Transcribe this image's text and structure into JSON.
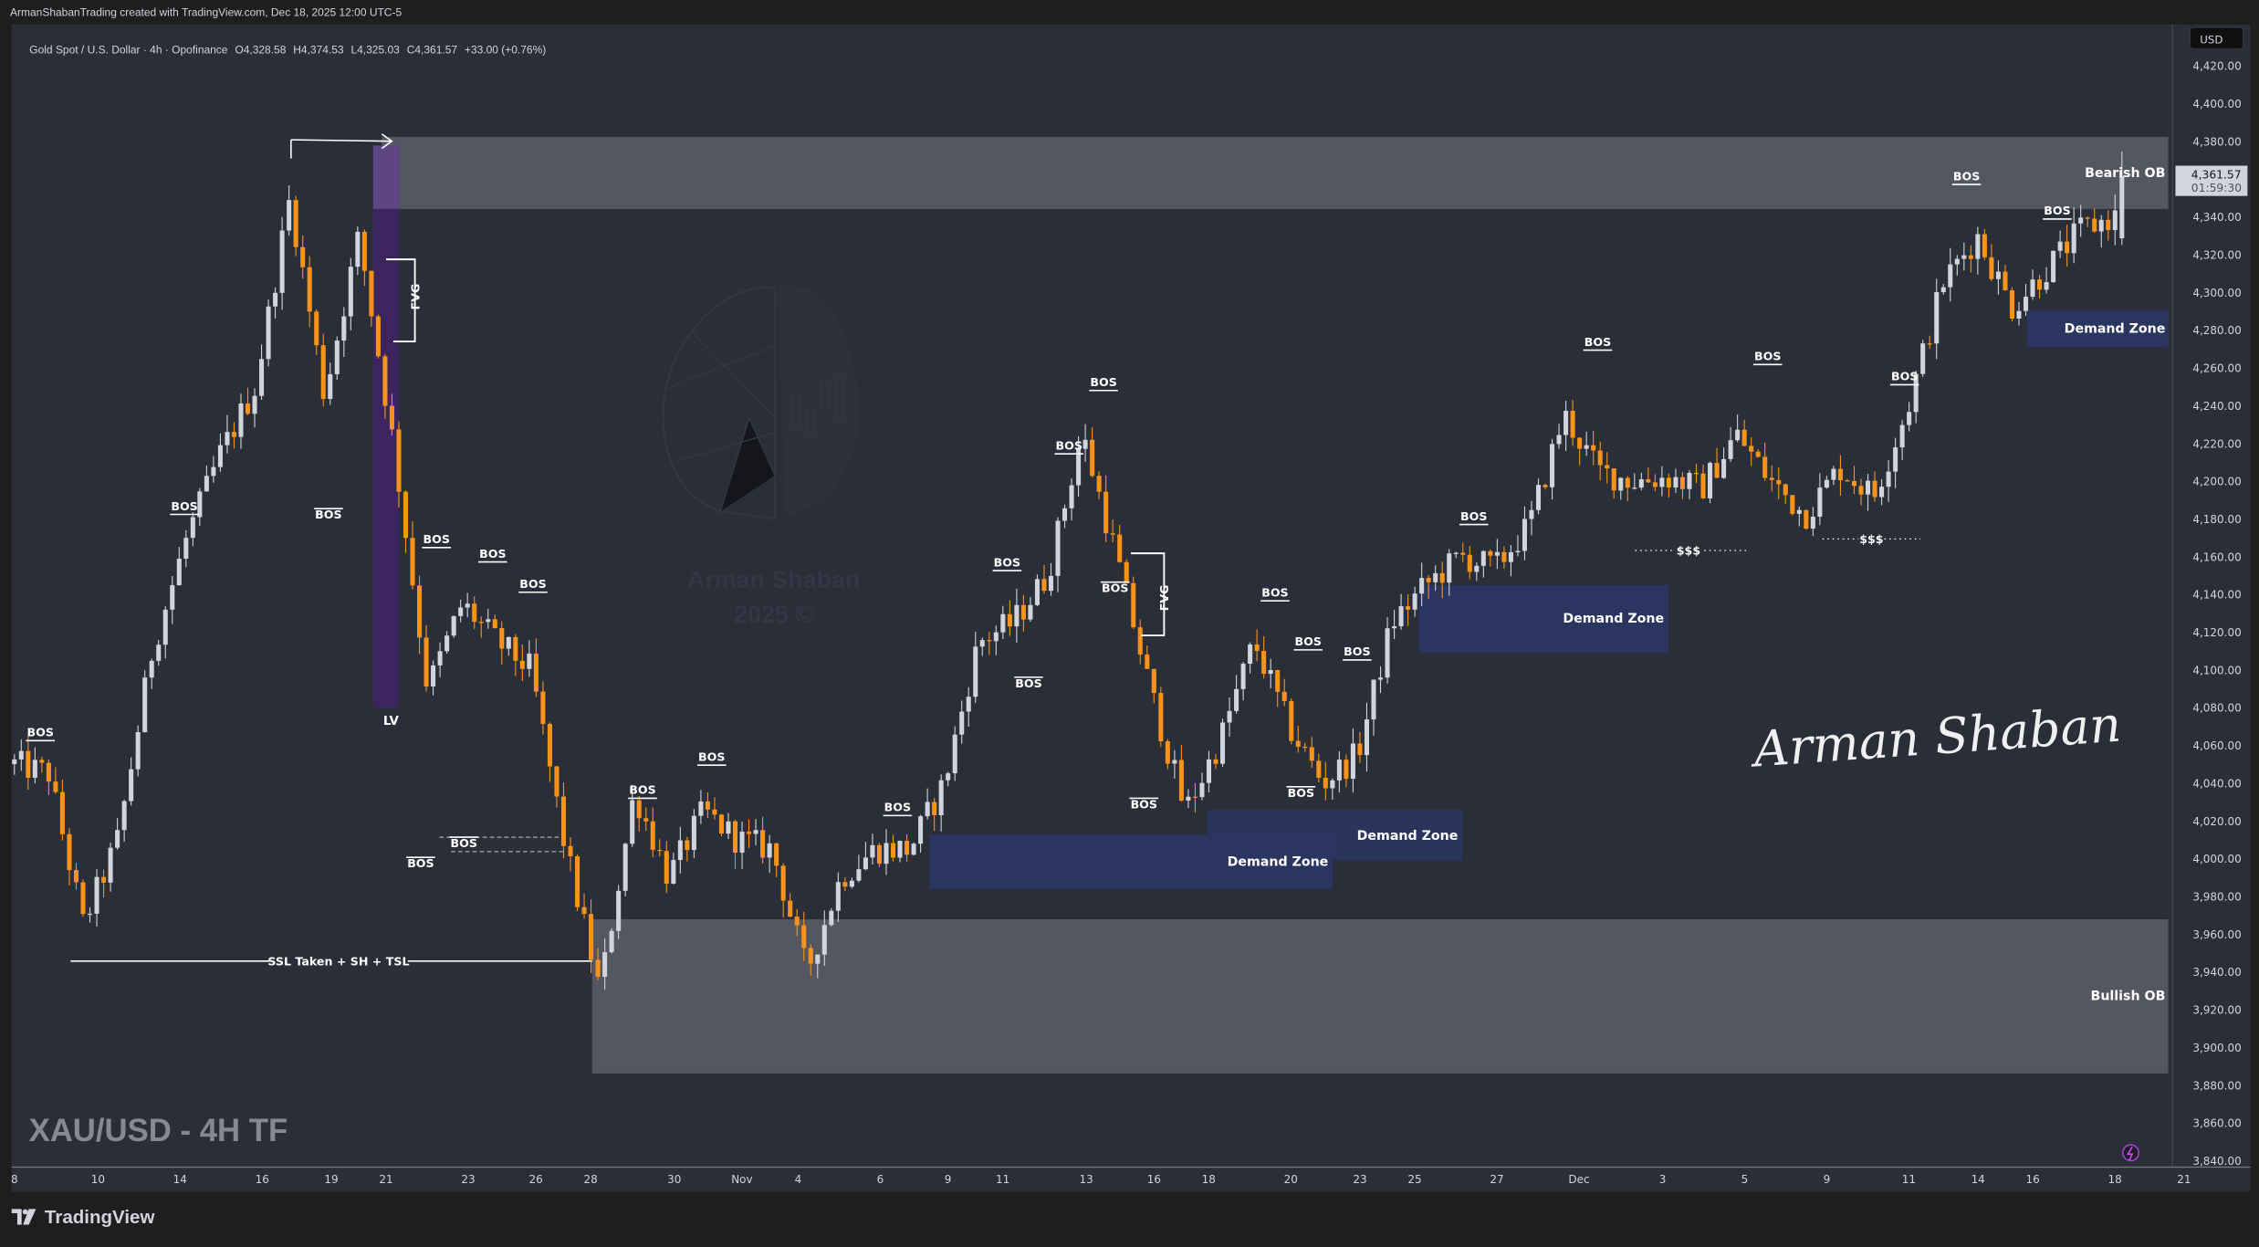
{
  "header": {
    "credit": "ArmanShabanTrading created with TradingView.com, Dec 18, 2025 12:00 UTC-5",
    "symbol": "Gold Spot / U.S. Dollar · 4h · Opofinance",
    "open": "O4,328.58",
    "high": "H4,374.53",
    "low": "L4,325.03",
    "close": "C4,361.57",
    "change": "+33.00 (+0.76%)"
  },
  "price_axis": {
    "currency": "USD",
    "last_price": "4,361.57",
    "countdown": "01:59:30"
  },
  "overlay": {
    "tf_label": "XAU/USD - 4H TF",
    "footer_brand": "TradingView",
    "watermark_name": "Arman Shaban",
    "watermark_year": "2025 ©",
    "signature": "Arman Shaban"
  },
  "annotations": {
    "bos_label": "BOS",
    "fvg_label": "FVG",
    "lv_label": "LV",
    "ssl_label": "SSL Taken + SH + TSL",
    "liquidity_label": "$$$",
    "bearish_ob": {
      "label": "Bearish OB",
      "top": 4382,
      "bottom": 4344
    },
    "bullish_ob": {
      "label": "Bullish OB",
      "top": 3968,
      "bottom": 3886
    },
    "demand_zones": [
      {
        "label": "Demand Zone",
        "top": 4013,
        "bottom": 3984
      },
      {
        "label": "Demand Zone",
        "top": 4026,
        "bottom": 3999
      },
      {
        "label": "Demand Zone",
        "top": 4145,
        "bottom": 4109
      },
      {
        "label": "Demand Zone",
        "top": 4290,
        "bottom": 4270
      }
    ]
  },
  "colors": {
    "background": "#2a2e39",
    "bullish": "#d1d4dc",
    "bearish": "#f7931a",
    "ob_zone": "#545762",
    "demand_zone": "#2a3660",
    "lv_zone": "#3d2560"
  },
  "chart_data": {
    "type": "candlestick",
    "title": "Gold Spot / U.S. Dollar · 4h · Opofinance",
    "x_ticks": [
      "8",
      "10",
      "14",
      "16",
      "19",
      "21",
      "23",
      "26",
      "28",
      "30",
      "Nov",
      "4",
      "6",
      "9",
      "11",
      "13",
      "16",
      "18",
      "20",
      "23",
      "25",
      "27",
      "Dec",
      "3",
      "5",
      "9",
      "11",
      "14",
      "16",
      "18",
      "21"
    ],
    "ylim": [
      3840,
      4420
    ],
    "y_tick_step": 20,
    "grid": false,
    "approx_close_path": [
      4050,
      4045,
      3965,
      4010,
      4110,
      4170,
      4215,
      4250,
      4350,
      4245,
      4330,
      4220,
      4090,
      4135,
      4115,
      4100,
      4005,
      3930,
      4035,
      3990,
      4025,
      4010,
      4005,
      3940,
      3990,
      4005,
      4005,
      4040,
      4115,
      4125,
      4150,
      4225,
      4160,
      4088,
      4025,
      4062,
      4115,
      4070,
      4040,
      4055,
      4125,
      4145,
      4160,
      4154,
      4177,
      4235,
      4205,
      4200,
      4202,
      4196,
      4225,
      4200,
      4182,
      4207,
      4192,
      4240,
      4305,
      4330,
      4292,
      4312,
      4333,
      4340
    ],
    "last_candle": {
      "open": 4328.58,
      "high": 4374.53,
      "low": 4325.03,
      "close": 4361.57
    }
  }
}
